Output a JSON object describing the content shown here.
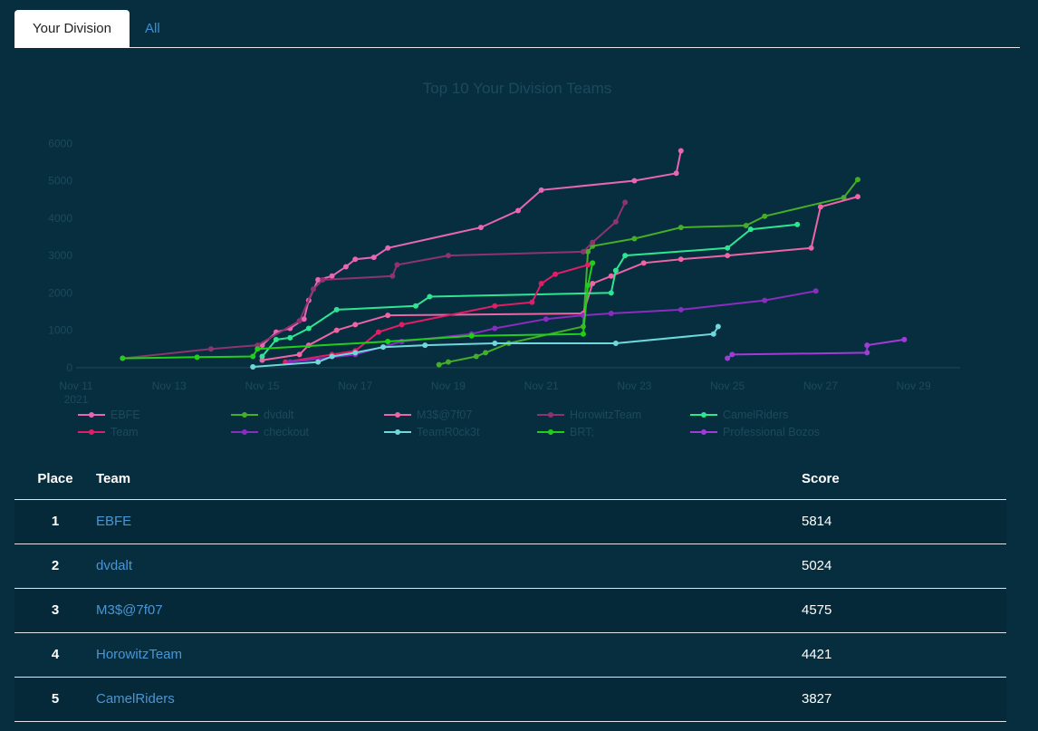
{
  "tabs": [
    {
      "label": "Your Division",
      "active": true
    },
    {
      "label": "All",
      "active": false
    }
  ],
  "colors": {
    "background": "#062e3f",
    "tab_active_bg": "#ffffff",
    "link": "#4a95d3",
    "muted_text": "#1c4a5c"
  },
  "chart_data": {
    "type": "line",
    "title": "Top 10 Your Division Teams",
    "x_ticks": [
      {
        "label": [
          "Nov 11",
          "2021"
        ],
        "day": 11
      },
      {
        "label": [
          "Nov 13"
        ],
        "day": 13
      },
      {
        "label": [
          "Nov 15"
        ],
        "day": 15
      },
      {
        "label": [
          "Nov 17"
        ],
        "day": 17
      },
      {
        "label": [
          "Nov 19"
        ],
        "day": 19
      },
      {
        "label": [
          "Nov 21"
        ],
        "day": 21
      },
      {
        "label": [
          "Nov 23"
        ],
        "day": 23
      },
      {
        "label": [
          "Nov 25"
        ],
        "day": 25
      },
      {
        "label": [
          "Nov 27"
        ],
        "day": 27
      },
      {
        "label": [
          "Nov 29"
        ],
        "day": 29
      }
    ],
    "y_ticks": [
      0,
      1000,
      2000,
      3000,
      4000,
      5000,
      6000
    ],
    "xlim": [
      11,
      30
    ],
    "ylim": [
      -100,
      6200
    ],
    "legend_position": "bottom",
    "series": [
      {
        "name": "EBFE",
        "color": "#e866b4",
        "points": [
          [
            15.0,
            600
          ],
          [
            15.3,
            950
          ],
          [
            15.6,
            1050
          ],
          [
            15.9,
            1300
          ],
          [
            16.0,
            1800
          ],
          [
            16.2,
            2350
          ],
          [
            16.5,
            2450
          ],
          [
            16.8,
            2700
          ],
          [
            17.0,
            2900
          ],
          [
            17.4,
            2950
          ],
          [
            17.7,
            3200
          ],
          [
            19.7,
            3750
          ],
          [
            20.5,
            4200
          ],
          [
            21.0,
            4750
          ],
          [
            23.0,
            5000
          ],
          [
            23.9,
            5200
          ],
          [
            24.0,
            5800
          ]
        ]
      },
      {
        "name": "dvdalt",
        "color": "#45ad28",
        "points": [
          [
            18.8,
            80
          ],
          [
            19.0,
            150
          ],
          [
            19.6,
            300
          ],
          [
            19.8,
            400
          ],
          [
            20.3,
            650
          ],
          [
            21.9,
            1100
          ],
          [
            22.0,
            3100
          ],
          [
            22.1,
            3250
          ],
          [
            23.0,
            3450
          ],
          [
            24.0,
            3750
          ],
          [
            25.4,
            3800
          ],
          [
            25.8,
            4050
          ],
          [
            27.5,
            4550
          ],
          [
            27.8,
            5030
          ]
        ]
      },
      {
        "name": "M3$@7f07",
        "color": "#ef64a4",
        "points": [
          [
            15.0,
            200
          ],
          [
            15.8,
            350
          ],
          [
            16.0,
            600
          ],
          [
            16.6,
            1000
          ],
          [
            17.0,
            1150
          ],
          [
            17.7,
            1400
          ],
          [
            21.9,
            1450
          ],
          [
            22.1,
            2250
          ],
          [
            22.5,
            2450
          ],
          [
            23.2,
            2800
          ],
          [
            24.0,
            2900
          ],
          [
            25.0,
            3000
          ],
          [
            26.8,
            3200
          ],
          [
            27.0,
            4300
          ],
          [
            27.8,
            4575
          ]
        ]
      },
      {
        "name": "HorowitzTeam",
        "color": "#8d346e",
        "points": [
          [
            12.0,
            250
          ],
          [
            13.9,
            500
          ],
          [
            14.9,
            600
          ],
          [
            15.8,
            1250
          ],
          [
            16.1,
            2100
          ],
          [
            16.3,
            2350
          ],
          [
            17.8,
            2450
          ],
          [
            17.9,
            2750
          ],
          [
            19.0,
            3000
          ],
          [
            21.9,
            3100
          ],
          [
            22.1,
            3350
          ],
          [
            22.6,
            3900
          ],
          [
            22.8,
            4421
          ]
        ]
      },
      {
        "name": "CamelRiders",
        "color": "#2ee692",
        "points": [
          [
            15.0,
            300
          ],
          [
            15.3,
            750
          ],
          [
            15.6,
            800
          ],
          [
            16.0,
            1050
          ],
          [
            16.6,
            1550
          ],
          [
            18.3,
            1650
          ],
          [
            18.6,
            1900
          ],
          [
            22.5,
            2000
          ],
          [
            22.6,
            2600
          ],
          [
            22.8,
            3000
          ],
          [
            25.0,
            3200
          ],
          [
            25.5,
            3700
          ],
          [
            26.5,
            3827
          ]
        ]
      },
      {
        "name": "Team",
        "color": "#e01e66",
        "points": [
          [
            15.5,
            150
          ],
          [
            16.5,
            350
          ],
          [
            17.0,
            450
          ],
          [
            17.5,
            950
          ],
          [
            18.0,
            1150
          ],
          [
            20.0,
            1650
          ],
          [
            20.8,
            1750
          ],
          [
            21.0,
            2250
          ],
          [
            21.3,
            2500
          ],
          [
            22.0,
            2750
          ],
          [
            22.1,
            2800
          ]
        ]
      },
      {
        "name": "checkout",
        "color": "#8a2cc0",
        "points": [
          [
            15.6,
            150
          ],
          [
            17.0,
            350
          ],
          [
            18.0,
            700
          ],
          [
            19.5,
            900
          ],
          [
            20.0,
            1050
          ],
          [
            21.1,
            1300
          ],
          [
            21.9,
            1400
          ],
          [
            22.5,
            1450
          ],
          [
            24.0,
            1550
          ],
          [
            25.8,
            1800
          ],
          [
            26.9,
            2050
          ]
        ]
      },
      {
        "name": "TeamR0ck3t",
        "color": "#6fd8dc",
        "points": [
          [
            14.8,
            20
          ],
          [
            16.2,
            150
          ],
          [
            16.5,
            300
          ],
          [
            17.0,
            400
          ],
          [
            17.6,
            550
          ],
          [
            18.5,
            600
          ],
          [
            20.0,
            650
          ],
          [
            22.6,
            650
          ],
          [
            24.7,
            900
          ],
          [
            24.8,
            1100
          ]
        ]
      },
      {
        "name": "BRT;",
        "color": "#20d018",
        "points": [
          [
            12.0,
            250
          ],
          [
            13.6,
            280
          ],
          [
            14.8,
            300
          ],
          [
            14.9,
            500
          ],
          [
            17.7,
            700
          ],
          [
            19.5,
            850
          ],
          [
            21.9,
            900
          ],
          [
            22.0,
            2200
          ],
          [
            22.1,
            2800
          ]
        ]
      },
      {
        "name": "Professional Bozos",
        "color": "#a23ad8",
        "points": [
          [
            25.0,
            250
          ],
          [
            25.1,
            350
          ],
          [
            28.0,
            400
          ],
          [
            28.0,
            600
          ],
          [
            28.8,
            750
          ]
        ]
      }
    ]
  },
  "scoreboard": {
    "headers": {
      "place": "Place",
      "team": "Team",
      "score": "Score"
    },
    "rows": [
      {
        "place": "1",
        "team": "EBFE",
        "score": "5814"
      },
      {
        "place": "2",
        "team": "dvdalt",
        "score": "5024"
      },
      {
        "place": "3",
        "team": "M3$@7f07",
        "score": "4575"
      },
      {
        "place": "4",
        "team": "HorowitzTeam",
        "score": "4421"
      },
      {
        "place": "5",
        "team": "CamelRiders",
        "score": "3827"
      }
    ]
  }
}
